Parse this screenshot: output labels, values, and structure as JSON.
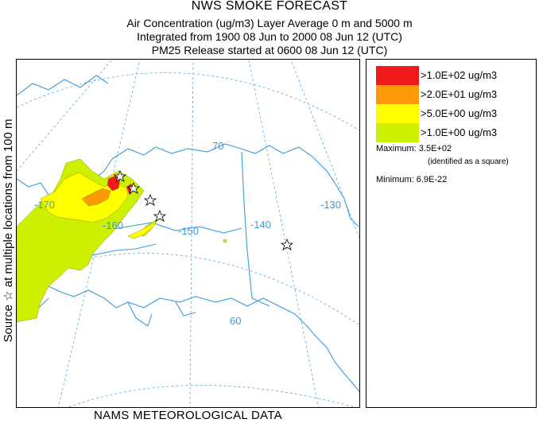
{
  "title": {
    "main": "NWS SMOKE FORECAST",
    "line1": "Air Concentration (ug/m3) Layer Average    0 m and  5000 m",
    "line2": "Integrated from 1900 08 Jun to 2000 08 Jun 12 (UTC)",
    "line3": "PM25 Release started at 0600 08 Jun 12 (UTC)"
  },
  "side_label": "Source ☆ at multiple locations   from   100 m",
  "footer": "NAMS METEOROLOGICAL DATA",
  "map": {
    "longitude_labels": [
      "-170",
      "-160",
      "-150",
      "-140",
      "-130"
    ],
    "latitude_labels": [
      "70",
      "60"
    ],
    "gridline_color": "#3a9ad9",
    "coastline_color": "#3a9ad9",
    "source_marker": "star-icon"
  },
  "legend": {
    "items": [
      {
        "label": ">1.0E+02 ug/m3",
        "color": "#f01a1a"
      },
      {
        "label": ">2.0E+01 ug/m3",
        "color": "#fb9a06"
      },
      {
        "label": ">5.0E+00 ug/m3",
        "color": "#ffff00"
      },
      {
        "label": ">1.0E+00 ug/m3",
        "color": "#ccf000"
      }
    ],
    "maximum": "Maximum: 3.5E+02",
    "maximum_note": "(identified as a square)",
    "minimum": "Minimum: 6.9E-22"
  }
}
